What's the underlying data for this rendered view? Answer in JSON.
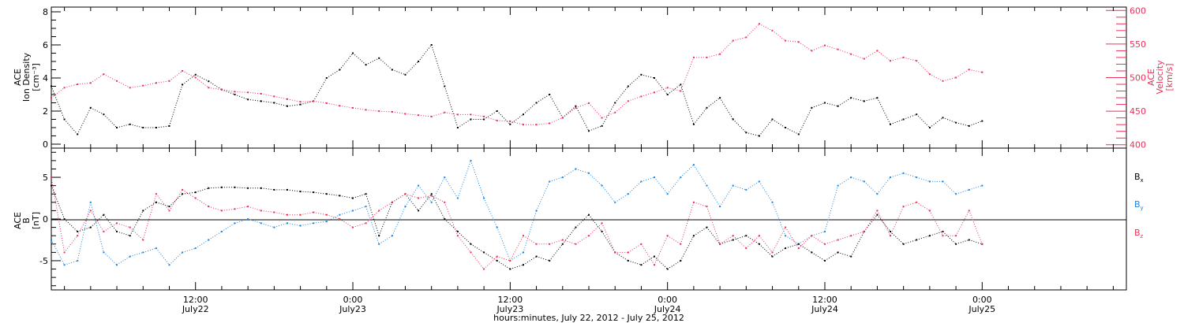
{
  "figure": {
    "xlabel": "hours:minutes, July 22, 2012 - July 25, 2012",
    "x_ticks": [
      {
        "time": "12:00",
        "date": "July22",
        "h": 12
      },
      {
        "time": "0:00",
        "date": "July23",
        "h": 24
      },
      {
        "time": "12:00",
        "date": "July23",
        "h": 36
      },
      {
        "time": "0:00",
        "date": "July24",
        "h": 48
      },
      {
        "time": "12:00",
        "date": "July24",
        "h": 60
      },
      {
        "time": "0:00",
        "date": "July25",
        "h": 72
      }
    ]
  },
  "colors": {
    "black": "#000000",
    "pink": "#e8325a",
    "blue": "#1a86e6"
  },
  "chart_data": [
    {
      "type": "scatter",
      "title": "",
      "xlabel": "hours:minutes, July 22, 2012 - July 25, 2012",
      "x_units": "hours since July 22, 2012 00:00",
      "xlim": [
        1,
        83
      ],
      "grid": false,
      "left_axis": {
        "label_lines": [
          "ACE",
          "Ion Density",
          "[cm⁻³]"
        ],
        "ylim": [
          0,
          8
        ],
        "ticks": [
          0,
          2,
          4,
          6,
          8
        ]
      },
      "right_axis": {
        "label_lines": [
          "ACE",
          "Velocity",
          "[km/s]"
        ],
        "ylim": [
          395,
          605
        ],
        "ticks": [
          400,
          450,
          500,
          550,
          600
        ]
      },
      "series": [
        {
          "name": "Ion Density",
          "axis": "left",
          "color": "#000000",
          "x": [
            1,
            2,
            3,
            4,
            5,
            6,
            7,
            8,
            9,
            10,
            11,
            12,
            13,
            14,
            15,
            16,
            17,
            18,
            19,
            20,
            21,
            22,
            23,
            24,
            25,
            26,
            27,
            28,
            29,
            30,
            31,
            32,
            33,
            34,
            35,
            36,
            37,
            38,
            39,
            40,
            41,
            42,
            43,
            44,
            45,
            46,
            47,
            48,
            49,
            50,
            51,
            52,
            53,
            54,
            55,
            56,
            57,
            58,
            59,
            60,
            61,
            62,
            63,
            64,
            65,
            66,
            67,
            68,
            69,
            70,
            71,
            72
          ],
          "y": [
            3.5,
            1.5,
            0.6,
            2.2,
            1.8,
            1.0,
            1.2,
            1.0,
            1.0,
            1.1,
            3.6,
            4.2,
            3.8,
            3.3,
            3.0,
            2.7,
            2.6,
            2.5,
            2.3,
            2.4,
            2.6,
            4.0,
            4.5,
            5.5,
            4.8,
            5.2,
            4.5,
            4.2,
            5.0,
            6.0,
            3.5,
            1.0,
            1.5,
            1.5,
            2.0,
            1.2,
            1.8,
            2.5,
            3.0,
            1.6,
            2.3,
            0.8,
            1.1,
            2.5,
            3.5,
            4.2,
            4.0,
            3.0,
            3.6,
            1.2,
            2.2,
            2.8,
            1.5,
            0.7,
            0.5,
            1.5,
            1.0,
            0.6,
            2.2,
            2.5,
            2.3,
            2.8,
            2.6,
            2.8,
            1.2,
            1.5,
            1.8,
            1.0,
            1.6,
            1.3,
            1.1,
            1.4
          ]
        },
        {
          "name": "Velocity",
          "axis": "right",
          "color": "#e8325a",
          "x": [
            1,
            2,
            3,
            4,
            5,
            6,
            7,
            8,
            9,
            10,
            11,
            12,
            13,
            14,
            15,
            16,
            17,
            18,
            19,
            20,
            21,
            22,
            23,
            24,
            25,
            26,
            27,
            28,
            29,
            30,
            31,
            32,
            33,
            34,
            35,
            36,
            37,
            38,
            39,
            40,
            41,
            42,
            43,
            44,
            45,
            46,
            47,
            48,
            49,
            50,
            51,
            52,
            53,
            54,
            55,
            56,
            57,
            58,
            59,
            60,
            61,
            62,
            63,
            64,
            65,
            66,
            67,
            68,
            69,
            70,
            71,
            72
          ],
          "y": [
            470,
            485,
            490,
            492,
            505,
            495,
            485,
            488,
            492,
            495,
            510,
            500,
            485,
            482,
            479,
            478,
            476,
            472,
            468,
            464,
            465,
            462,
            458,
            455,
            452,
            450,
            449,
            446,
            444,
            442,
            448,
            445,
            445,
            442,
            436,
            435,
            430,
            430,
            432,
            440,
            455,
            462,
            440,
            448,
            465,
            472,
            478,
            485,
            480,
            530,
            530,
            535,
            555,
            560,
            580,
            570,
            555,
            553,
            540,
            548,
            542,
            535,
            528,
            540,
            525,
            530,
            525,
            505,
            495,
            500,
            512,
            508
          ]
        }
      ]
    },
    {
      "type": "scatter",
      "title": "",
      "xlabel": "hours:minutes, July 22, 2012 - July 25, 2012",
      "x_units": "hours since July 22, 2012 00:00",
      "xlim": [
        1,
        83
      ],
      "grid": false,
      "zero_line": true,
      "left_axis": {
        "label_lines": [
          "ACE",
          "B",
          "[nT]"
        ],
        "ylim": [
          -8.5,
          8.5
        ],
        "ticks": [
          -5,
          0,
          5
        ]
      },
      "legend": {
        "position": "right",
        "entries": [
          {
            "base": "B",
            "sub": "x",
            "color": "#000000"
          },
          {
            "base": "B",
            "sub": "y",
            "color": "#1a86e6"
          },
          {
            "base": "B",
            "sub": "z",
            "color": "#e8325a"
          }
        ]
      },
      "series": [
        {
          "name": "Bx",
          "color": "#000000",
          "x": [
            1,
            2,
            3,
            4,
            5,
            6,
            7,
            8,
            9,
            10,
            11,
            12,
            13,
            14,
            15,
            16,
            17,
            18,
            19,
            20,
            21,
            22,
            23,
            24,
            25,
            26,
            27,
            28,
            29,
            30,
            31,
            32,
            33,
            34,
            35,
            36,
            37,
            38,
            39,
            40,
            41,
            42,
            43,
            44,
            45,
            46,
            47,
            48,
            49,
            50,
            51,
            52,
            53,
            54,
            55,
            56,
            57,
            58,
            59,
            60,
            61,
            62,
            63,
            64,
            65,
            66,
            67,
            68,
            69,
            70,
            71,
            72
          ],
          "y": [
            4.0,
            0.0,
            -1.5,
            -1.0,
            0.5,
            -1.5,
            -2.0,
            1.0,
            2.0,
            1.5,
            3.0,
            3.2,
            3.7,
            3.8,
            3.8,
            3.7,
            3.7,
            3.5,
            3.5,
            3.3,
            3.2,
            3.0,
            2.8,
            2.5,
            3.0,
            -2.0,
            2.0,
            3.0,
            1.0,
            3.0,
            0.0,
            -1.5,
            -3.0,
            -4.0,
            -5.0,
            -6.0,
            -5.5,
            -4.5,
            -5.0,
            -3.0,
            -1.0,
            0.5,
            -1.5,
            -4.0,
            -5.0,
            -5.5,
            -4.5,
            -6.0,
            -5.0,
            -2.0,
            -1.0,
            -3.0,
            -2.5,
            -2.0,
            -3.0,
            -4.5,
            -3.5,
            -3.0,
            -4.0,
            -5.0,
            -4.0,
            -4.5,
            -1.5,
            0.5,
            -1.5,
            -3.0,
            -2.5,
            -2.0,
            -1.5,
            -3.0,
            -2.5,
            -3.0
          ]
        },
        {
          "name": "By",
          "color": "#1a86e6",
          "x": [
            1,
            2,
            3,
            4,
            5,
            6,
            7,
            8,
            9,
            10,
            11,
            12,
            13,
            14,
            15,
            16,
            17,
            18,
            19,
            20,
            21,
            22,
            23,
            24,
            25,
            26,
            27,
            28,
            29,
            30,
            31,
            32,
            33,
            34,
            35,
            36,
            37,
            38,
            39,
            40,
            41,
            42,
            43,
            44,
            45,
            46,
            47,
            48,
            49,
            50,
            51,
            52,
            53,
            54,
            55,
            56,
            57,
            58,
            59,
            60,
            61,
            62,
            63,
            64,
            65,
            66,
            67,
            68,
            69,
            70,
            71,
            72
          ],
          "y": [
            -2.5,
            -5.5,
            -5.0,
            2.0,
            -4.0,
            -5.5,
            -4.5,
            -4.0,
            -3.5,
            -5.5,
            -4.0,
            -3.5,
            -2.5,
            -1.5,
            -0.5,
            0.0,
            -0.5,
            -1.0,
            -0.5,
            -0.8,
            -0.5,
            -0.3,
            0.5,
            1.0,
            1.5,
            -3.0,
            -2.0,
            1.5,
            4.0,
            2.0,
            5.0,
            2.5,
            7.0,
            2.5,
            -1.0,
            -5.0,
            -4.0,
            1.0,
            4.5,
            5.0,
            6.0,
            5.5,
            4.0,
            2.0,
            3.0,
            4.5,
            5.0,
            3.0,
            5.0,
            6.5,
            4.0,
            1.5,
            4.0,
            3.5,
            4.5,
            2.0,
            -2.0,
            -3.0,
            -2.0,
            -1.5,
            4.0,
            5.0,
            4.5,
            3.0,
            5.0,
            5.5,
            5.0,
            4.5,
            4.5,
            3.0,
            3.5,
            4.0
          ]
        },
        {
          "name": "Bz",
          "color": "#e8325a",
          "x": [
            1,
            2,
            3,
            4,
            5,
            6,
            7,
            8,
            9,
            10,
            11,
            12,
            13,
            14,
            15,
            16,
            17,
            18,
            19,
            20,
            21,
            22,
            23,
            24,
            25,
            26,
            27,
            28,
            29,
            30,
            31,
            32,
            33,
            34,
            35,
            36,
            37,
            38,
            39,
            40,
            41,
            42,
            43,
            44,
            45,
            46,
            47,
            48,
            49,
            50,
            51,
            52,
            53,
            54,
            55,
            56,
            57,
            58,
            59,
            60,
            61,
            62,
            63,
            64,
            65,
            66,
            67,
            68,
            69,
            70,
            71,
            72
          ],
          "y": [
            5.0,
            -4.0,
            -2.0,
            1.0,
            -1.5,
            -0.5,
            -1.0,
            -2.5,
            3.0,
            1.0,
            3.5,
            2.5,
            1.5,
            1.0,
            1.2,
            1.5,
            1.0,
            0.8,
            0.5,
            0.5,
            0.8,
            0.5,
            0.0,
            -1.0,
            -0.5,
            1.0,
            2.0,
            3.0,
            2.5,
            2.8,
            2.0,
            -2.0,
            -4.0,
            -6.0,
            -4.5,
            -5.0,
            -2.0,
            -3.0,
            -3.0,
            -2.5,
            -3.0,
            -2.0,
            -0.5,
            -4.0,
            -4.0,
            -3.0,
            -5.5,
            -2.0,
            -3.0,
            2.0,
            1.5,
            -3.0,
            -2.0,
            -3.5,
            -2.0,
            -4.0,
            -1.0,
            -3.5,
            -2.0,
            -3.0,
            -2.5,
            -2.0,
            -1.5,
            1.0,
            -2.0,
            1.5,
            2.0,
            1.0,
            -2.0,
            -2.0,
            1.0,
            -3.0
          ]
        }
      ]
    }
  ]
}
